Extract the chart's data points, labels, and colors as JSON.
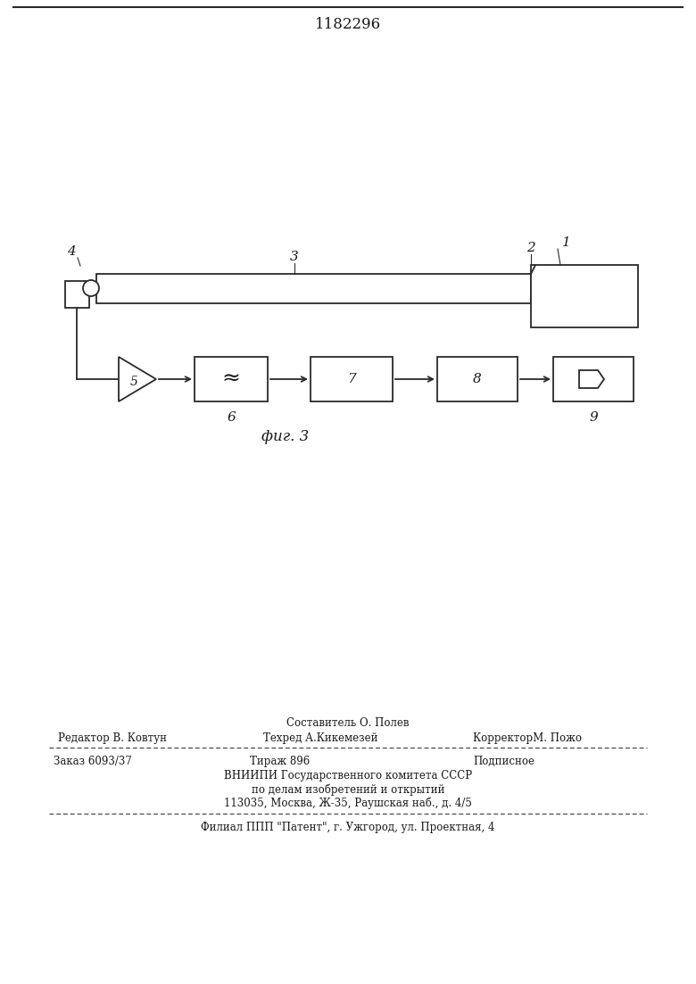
{
  "title": "1182296",
  "fig_label": "фиг. 3",
  "background_color": "#ffffff",
  "line_color": "#2a2a2a",
  "text_color": "#1a1a1a",
  "footer_line0_center": "Составитель О. Полев",
  "footer_line1_left": "Редактор В. Ковтун",
  "footer_line1_center": "Техред А.Кикемезей",
  "footer_line1_right": "КорректорМ. Пожо",
  "footer_line2_left": "Заказ 6093/37",
  "footer_line2_center": "Тираж 896",
  "footer_line2_right": "Подписное",
  "footer_line3": "ВНИИПИ Государственного комитета СССР",
  "footer_line4": "по делам изобретений и открытий",
  "footer_line5": "113035, Москва, Ж-35, Раушская наб., д. 4/5",
  "footer_line6": "Филиал ППП \"Патент\", г. Ужгород, ул. Проектная, 4"
}
